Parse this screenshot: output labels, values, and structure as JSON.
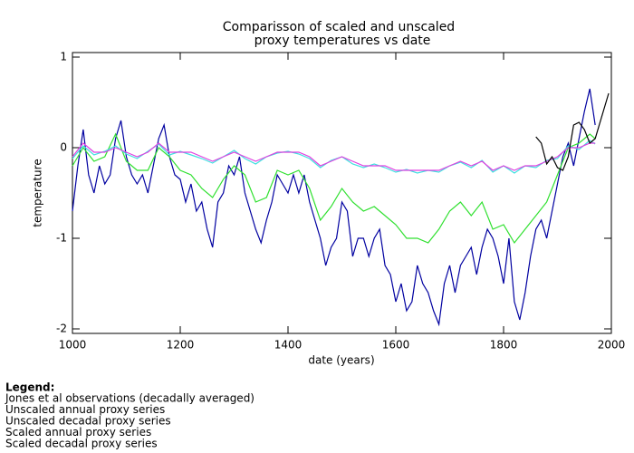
{
  "chart_data": {
    "type": "line",
    "title": [
      "Comparisson of scaled and unscaled",
      "proxy temperatures vs date"
    ],
    "x_label": "date (years)",
    "y_label": "temperature",
    "legend_title": "Legend:",
    "xlim": [
      1000,
      2000
    ],
    "ylim": [
      -2.05,
      1.05
    ],
    "xticks": [
      1000,
      1200,
      1400,
      1600,
      1800,
      2000
    ],
    "yticks": [
      -2,
      -1,
      0,
      1
    ],
    "series": [
      {
        "name": "Jones et al observations (decadally averaged)",
        "color": "#000000",
        "x": [
          1860,
          1870,
          1880,
          1890,
          1900,
          1910,
          1920,
          1930,
          1940,
          1950,
          1960,
          1970,
          1980,
          1990,
          1995
        ],
        "values": [
          0.12,
          0.05,
          -0.18,
          -0.1,
          -0.22,
          -0.25,
          -0.1,
          0.25,
          0.28,
          0.2,
          0.05,
          0.1,
          0.3,
          0.5,
          0.6
        ]
      },
      {
        "name": "Unscaled annual proxy series",
        "color": "#40e0e0",
        "x": [
          1000,
          1020,
          1040,
          1060,
          1080,
          1100,
          1120,
          1140,
          1160,
          1180,
          1200,
          1220,
          1240,
          1260,
          1280,
          1300,
          1320,
          1340,
          1360,
          1380,
          1400,
          1420,
          1440,
          1460,
          1480,
          1500,
          1520,
          1540,
          1560,
          1580,
          1600,
          1620,
          1640,
          1660,
          1680,
          1700,
          1720,
          1740,
          1760,
          1780,
          1800,
          1820,
          1840,
          1860,
          1880,
          1900,
          1920,
          1940,
          1960,
          1970
        ],
        "values": [
          -0.12,
          0.02,
          -0.08,
          -0.04,
          0.02,
          -0.07,
          -0.12,
          -0.04,
          0.04,
          -0.08,
          -0.04,
          -0.08,
          -0.12,
          -0.17,
          -0.1,
          -0.03,
          -0.12,
          -0.18,
          -0.1,
          -0.06,
          -0.04,
          -0.07,
          -0.12,
          -0.22,
          -0.14,
          -0.1,
          -0.18,
          -0.22,
          -0.18,
          -0.22,
          -0.27,
          -0.24,
          -0.28,
          -0.25,
          -0.27,
          -0.2,
          -0.16,
          -0.22,
          -0.14,
          -0.27,
          -0.2,
          -0.28,
          -0.2,
          -0.22,
          -0.14,
          -0.12,
          0.02,
          -0.02,
          0.08,
          0.04
        ]
      },
      {
        "name": "Unscaled decadal proxy series",
        "color": "#e040e0",
        "x": [
          1000,
          1020,
          1040,
          1060,
          1080,
          1100,
          1120,
          1140,
          1160,
          1180,
          1200,
          1220,
          1240,
          1260,
          1280,
          1300,
          1320,
          1340,
          1360,
          1380,
          1400,
          1420,
          1440,
          1460,
          1480,
          1500,
          1520,
          1540,
          1560,
          1580,
          1600,
          1620,
          1640,
          1660,
          1680,
          1700,
          1720,
          1740,
          1760,
          1780,
          1800,
          1820,
          1840,
          1860,
          1880,
          1900,
          1920,
          1940,
          1960,
          1970
        ],
        "values": [
          -0.1,
          0.05,
          -0.05,
          -0.05,
          0.0,
          -0.05,
          -0.1,
          -0.05,
          0.05,
          -0.05,
          -0.05,
          -0.05,
          -0.1,
          -0.15,
          -0.1,
          -0.05,
          -0.1,
          -0.15,
          -0.1,
          -0.05,
          -0.05,
          -0.05,
          -0.1,
          -0.2,
          -0.15,
          -0.1,
          -0.15,
          -0.2,
          -0.2,
          -0.2,
          -0.25,
          -0.25,
          -0.25,
          -0.25,
          -0.25,
          -0.2,
          -0.15,
          -0.2,
          -0.15,
          -0.25,
          -0.2,
          -0.25,
          -0.2,
          -0.2,
          -0.15,
          -0.1,
          0.0,
          0.0,
          0.05,
          0.05
        ]
      },
      {
        "name": "Scaled annual proxy series",
        "color": "#0000a0",
        "x": [
          1000,
          1010,
          1020,
          1030,
          1040,
          1050,
          1060,
          1070,
          1080,
          1090,
          1100,
          1110,
          1120,
          1130,
          1140,
          1150,
          1160,
          1170,
          1180,
          1190,
          1200,
          1210,
          1220,
          1230,
          1240,
          1250,
          1260,
          1270,
          1280,
          1290,
          1300,
          1310,
          1320,
          1330,
          1340,
          1350,
          1360,
          1370,
          1380,
          1390,
          1400,
          1410,
          1420,
          1430,
          1440,
          1450,
          1460,
          1470,
          1480,
          1490,
          1500,
          1510,
          1520,
          1530,
          1540,
          1550,
          1560,
          1570,
          1580,
          1590,
          1600,
          1610,
          1620,
          1630,
          1640,
          1650,
          1660,
          1670,
          1680,
          1690,
          1700,
          1710,
          1720,
          1730,
          1740,
          1750,
          1760,
          1770,
          1780,
          1790,
          1800,
          1810,
          1820,
          1830,
          1840,
          1850,
          1860,
          1870,
          1880,
          1890,
          1900,
          1910,
          1920,
          1930,
          1940,
          1950,
          1960,
          1970
        ],
        "values": [
          -0.7,
          -0.2,
          0.2,
          -0.3,
          -0.5,
          -0.2,
          -0.4,
          -0.3,
          0.1,
          0.3,
          -0.1,
          -0.3,
          -0.4,
          -0.3,
          -0.5,
          -0.2,
          0.1,
          0.25,
          -0.1,
          -0.3,
          -0.35,
          -0.6,
          -0.4,
          -0.7,
          -0.6,
          -0.9,
          -1.1,
          -0.6,
          -0.5,
          -0.2,
          -0.3,
          -0.1,
          -0.5,
          -0.7,
          -0.9,
          -1.05,
          -0.8,
          -0.6,
          -0.3,
          -0.4,
          -0.5,
          -0.3,
          -0.5,
          -0.3,
          -0.6,
          -0.8,
          -1.0,
          -1.3,
          -1.1,
          -1.0,
          -0.6,
          -0.7,
          -1.2,
          -1.0,
          -1.0,
          -1.2,
          -1.0,
          -0.9,
          -1.3,
          -1.4,
          -1.7,
          -1.5,
          -1.8,
          -1.7,
          -1.3,
          -1.5,
          -1.6,
          -1.8,
          -1.95,
          -1.5,
          -1.3,
          -1.6,
          -1.3,
          -1.2,
          -1.1,
          -1.4,
          -1.1,
          -0.9,
          -1.0,
          -1.2,
          -1.5,
          -1.0,
          -1.7,
          -1.9,
          -1.6,
          -1.2,
          -0.9,
          -0.8,
          -1.0,
          -0.7,
          -0.4,
          -0.1,
          0.05,
          -0.2,
          0.1,
          0.4,
          0.65,
          0.25
        ]
      },
      {
        "name": "Scaled decadal proxy series",
        "color": "#30e030",
        "x": [
          1000,
          1020,
          1040,
          1060,
          1080,
          1100,
          1120,
          1140,
          1160,
          1180,
          1200,
          1220,
          1240,
          1260,
          1280,
          1300,
          1320,
          1340,
          1360,
          1380,
          1400,
          1420,
          1440,
          1460,
          1480,
          1500,
          1520,
          1540,
          1560,
          1580,
          1600,
          1620,
          1640,
          1660,
          1680,
          1700,
          1720,
          1740,
          1760,
          1780,
          1800,
          1820,
          1840,
          1860,
          1880,
          1900,
          1920,
          1940,
          1960,
          1970
        ],
        "values": [
          -0.2,
          0.0,
          -0.15,
          -0.1,
          0.15,
          -0.15,
          -0.25,
          -0.25,
          0.0,
          -0.1,
          -0.25,
          -0.3,
          -0.45,
          -0.55,
          -0.35,
          -0.2,
          -0.3,
          -0.6,
          -0.55,
          -0.25,
          -0.3,
          -0.25,
          -0.45,
          -0.8,
          -0.65,
          -0.45,
          -0.6,
          -0.7,
          -0.65,
          -0.75,
          -0.85,
          -1.0,
          -1.0,
          -1.05,
          -0.9,
          -0.7,
          -0.6,
          -0.75,
          -0.6,
          -0.9,
          -0.85,
          -1.05,
          -0.9,
          -0.75,
          -0.6,
          -0.3,
          0.0,
          0.05,
          0.15,
          0.1
        ]
      }
    ]
  }
}
